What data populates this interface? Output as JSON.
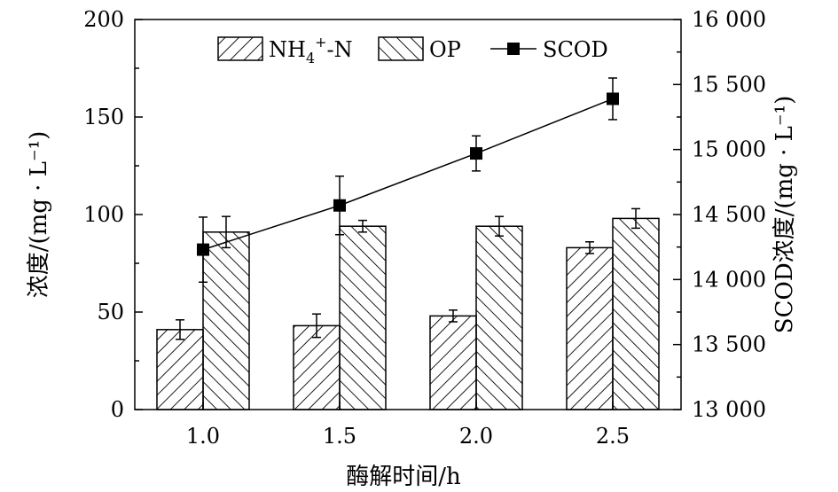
{
  "chart_data": {
    "type": "bar",
    "categories": [
      "1.0",
      "1.5",
      "2.0",
      "2.5"
    ],
    "xlabel": "酶解时间/h",
    "ylabel_left": "浓度/(mg · L⁻¹)",
    "ylabel_right": "SCOD浓度/(mg · L⁻¹)",
    "ylim_left": [
      0,
      200
    ],
    "yticks_left": [
      "0",
      "50",
      "100",
      "150",
      "200"
    ],
    "ylim_right": [
      13000,
      16000
    ],
    "yticks_right": [
      "13 000",
      "13 500",
      "14 000",
      "14 500",
      "15 000",
      "15 500",
      "16 000"
    ],
    "grid": false,
    "legend_position": "top",
    "series": [
      {
        "name": "NH4+-N",
        "legend_main": "NH",
        "legend_sub": "4",
        "legend_sup": "+",
        "legend_tail": "-N",
        "type": "bar",
        "axis": "left",
        "pattern": "backslash-hatch",
        "values": [
          41,
          43,
          48,
          83
        ],
        "errors": [
          5,
          6,
          3,
          3
        ]
      },
      {
        "name": "OP",
        "type": "bar",
        "axis": "left",
        "pattern": "slash-hatch",
        "values": [
          91,
          94,
          94,
          98
        ],
        "errors": [
          8,
          3,
          5,
          5
        ]
      },
      {
        "name": "SCOD",
        "type": "line",
        "axis": "right",
        "marker": "square",
        "values": [
          14230,
          14570,
          14970,
          15390
        ],
        "errors": [
          250,
          225,
          135,
          160
        ]
      }
    ]
  }
}
